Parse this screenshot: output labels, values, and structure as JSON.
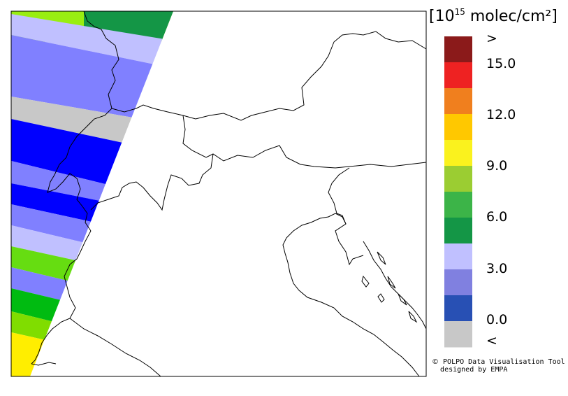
{
  "legend": {
    "unit_prefix": "[10",
    "unit_exp": "15",
    "unit_suffix": " molec/cm²]",
    "top_label": ">",
    "bottom_label": "<",
    "tick_labels": [
      "15.0",
      "12.0",
      "9.0",
      "6.0",
      "3.0",
      "0.0"
    ],
    "colors": [
      "#8B1A1A",
      "#EE2222",
      "#F07F1E",
      "#FFC800",
      "#FAF21E",
      "#9BCD32",
      "#3CB448",
      "#149646",
      "#C0C0FF",
      "#8080E0",
      "#2850B4",
      "#C8C8C8"
    ]
  },
  "credit": {
    "line1": "POLPO Data Visualisation Tool",
    "line2": "designed by EMPA",
    "mark": "©"
  },
  "swath_bands": [
    {
      "color": "#149646"
    },
    {
      "color": "#FFFFFF"
    },
    {
      "color": "#C0C0FF"
    },
    {
      "color": "#8080FF"
    },
    {
      "color": "#C8C8C8"
    },
    {
      "color": "#0000FF"
    },
    {
      "color": "#8080FF"
    },
    {
      "color": "#0000FF"
    },
    {
      "color": "#8080FF"
    },
    {
      "color": "#C0C0FF"
    },
    {
      "color": "#66DD11"
    },
    {
      "color": "#8080FF"
    },
    {
      "color": "#00BB11"
    },
    {
      "color": "#80DD00"
    },
    {
      "color": "#FFEE00"
    }
  ]
}
